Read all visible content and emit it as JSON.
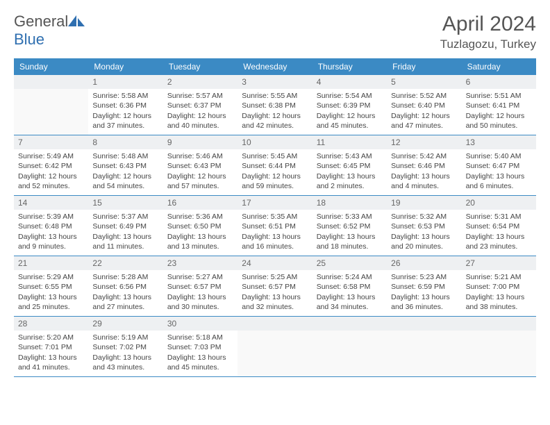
{
  "logo": {
    "text1": "General",
    "text2": "Blue"
  },
  "title": {
    "month": "April 2024",
    "location": "Tuzlagozu, Turkey"
  },
  "colors": {
    "header_bg": "#3b8ac4",
    "header_text": "#ffffff",
    "daynum_bg": "#eef0f2",
    "border": "#3b8ac4",
    "body_text": "#444444",
    "title_text": "#555555"
  },
  "weekdays": [
    "Sunday",
    "Monday",
    "Tuesday",
    "Wednesday",
    "Thursday",
    "Friday",
    "Saturday"
  ],
  "weeks": [
    [
      null,
      {
        "n": "1",
        "sr": "Sunrise: 5:58 AM",
        "ss": "Sunset: 6:36 PM",
        "dl": "Daylight: 12 hours and 37 minutes."
      },
      {
        "n": "2",
        "sr": "Sunrise: 5:57 AM",
        "ss": "Sunset: 6:37 PM",
        "dl": "Daylight: 12 hours and 40 minutes."
      },
      {
        "n": "3",
        "sr": "Sunrise: 5:55 AM",
        "ss": "Sunset: 6:38 PM",
        "dl": "Daylight: 12 hours and 42 minutes."
      },
      {
        "n": "4",
        "sr": "Sunrise: 5:54 AM",
        "ss": "Sunset: 6:39 PM",
        "dl": "Daylight: 12 hours and 45 minutes."
      },
      {
        "n": "5",
        "sr": "Sunrise: 5:52 AM",
        "ss": "Sunset: 6:40 PM",
        "dl": "Daylight: 12 hours and 47 minutes."
      },
      {
        "n": "6",
        "sr": "Sunrise: 5:51 AM",
        "ss": "Sunset: 6:41 PM",
        "dl": "Daylight: 12 hours and 50 minutes."
      }
    ],
    [
      {
        "n": "7",
        "sr": "Sunrise: 5:49 AM",
        "ss": "Sunset: 6:42 PM",
        "dl": "Daylight: 12 hours and 52 minutes."
      },
      {
        "n": "8",
        "sr": "Sunrise: 5:48 AM",
        "ss": "Sunset: 6:43 PM",
        "dl": "Daylight: 12 hours and 54 minutes."
      },
      {
        "n": "9",
        "sr": "Sunrise: 5:46 AM",
        "ss": "Sunset: 6:43 PM",
        "dl": "Daylight: 12 hours and 57 minutes."
      },
      {
        "n": "10",
        "sr": "Sunrise: 5:45 AM",
        "ss": "Sunset: 6:44 PM",
        "dl": "Daylight: 12 hours and 59 minutes."
      },
      {
        "n": "11",
        "sr": "Sunrise: 5:43 AM",
        "ss": "Sunset: 6:45 PM",
        "dl": "Daylight: 13 hours and 2 minutes."
      },
      {
        "n": "12",
        "sr": "Sunrise: 5:42 AM",
        "ss": "Sunset: 6:46 PM",
        "dl": "Daylight: 13 hours and 4 minutes."
      },
      {
        "n": "13",
        "sr": "Sunrise: 5:40 AM",
        "ss": "Sunset: 6:47 PM",
        "dl": "Daylight: 13 hours and 6 minutes."
      }
    ],
    [
      {
        "n": "14",
        "sr": "Sunrise: 5:39 AM",
        "ss": "Sunset: 6:48 PM",
        "dl": "Daylight: 13 hours and 9 minutes."
      },
      {
        "n": "15",
        "sr": "Sunrise: 5:37 AM",
        "ss": "Sunset: 6:49 PM",
        "dl": "Daylight: 13 hours and 11 minutes."
      },
      {
        "n": "16",
        "sr": "Sunrise: 5:36 AM",
        "ss": "Sunset: 6:50 PM",
        "dl": "Daylight: 13 hours and 13 minutes."
      },
      {
        "n": "17",
        "sr": "Sunrise: 5:35 AM",
        "ss": "Sunset: 6:51 PM",
        "dl": "Daylight: 13 hours and 16 minutes."
      },
      {
        "n": "18",
        "sr": "Sunrise: 5:33 AM",
        "ss": "Sunset: 6:52 PM",
        "dl": "Daylight: 13 hours and 18 minutes."
      },
      {
        "n": "19",
        "sr": "Sunrise: 5:32 AM",
        "ss": "Sunset: 6:53 PM",
        "dl": "Daylight: 13 hours and 20 minutes."
      },
      {
        "n": "20",
        "sr": "Sunrise: 5:31 AM",
        "ss": "Sunset: 6:54 PM",
        "dl": "Daylight: 13 hours and 23 minutes."
      }
    ],
    [
      {
        "n": "21",
        "sr": "Sunrise: 5:29 AM",
        "ss": "Sunset: 6:55 PM",
        "dl": "Daylight: 13 hours and 25 minutes."
      },
      {
        "n": "22",
        "sr": "Sunrise: 5:28 AM",
        "ss": "Sunset: 6:56 PM",
        "dl": "Daylight: 13 hours and 27 minutes."
      },
      {
        "n": "23",
        "sr": "Sunrise: 5:27 AM",
        "ss": "Sunset: 6:57 PM",
        "dl": "Daylight: 13 hours and 30 minutes."
      },
      {
        "n": "24",
        "sr": "Sunrise: 5:25 AM",
        "ss": "Sunset: 6:57 PM",
        "dl": "Daylight: 13 hours and 32 minutes."
      },
      {
        "n": "25",
        "sr": "Sunrise: 5:24 AM",
        "ss": "Sunset: 6:58 PM",
        "dl": "Daylight: 13 hours and 34 minutes."
      },
      {
        "n": "26",
        "sr": "Sunrise: 5:23 AM",
        "ss": "Sunset: 6:59 PM",
        "dl": "Daylight: 13 hours and 36 minutes."
      },
      {
        "n": "27",
        "sr": "Sunrise: 5:21 AM",
        "ss": "Sunset: 7:00 PM",
        "dl": "Daylight: 13 hours and 38 minutes."
      }
    ],
    [
      {
        "n": "28",
        "sr": "Sunrise: 5:20 AM",
        "ss": "Sunset: 7:01 PM",
        "dl": "Daylight: 13 hours and 41 minutes."
      },
      {
        "n": "29",
        "sr": "Sunrise: 5:19 AM",
        "ss": "Sunset: 7:02 PM",
        "dl": "Daylight: 13 hours and 43 minutes."
      },
      {
        "n": "30",
        "sr": "Sunrise: 5:18 AM",
        "ss": "Sunset: 7:03 PM",
        "dl": "Daylight: 13 hours and 45 minutes."
      },
      null,
      null,
      null,
      null
    ]
  ]
}
